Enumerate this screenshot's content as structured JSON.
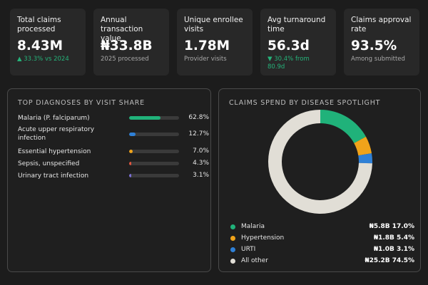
{
  "kpis": [
    {
      "label": "Total claims processed",
      "value": "8.43M",
      "sub": "▲ 33.3% vs 2024",
      "sub_positive": true
    },
    {
      "label": "Annual transaction value",
      "value": "₦33.8B",
      "sub": "2025 processed",
      "sub_positive": false
    },
    {
      "label": "Unique enrollee visits",
      "value": "1.78M",
      "sub": "Provider visits",
      "sub_positive": false
    },
    {
      "label": "Avg turnaround time",
      "value": "56.3d",
      "sub": "▼ 30.4% from 80.9d",
      "sub_positive": true
    },
    {
      "label": "Claims approval rate",
      "value": "93.5%",
      "sub": "Among submitted",
      "sub_positive": false
    }
  ],
  "diagnoses": {
    "title": "TOP DIAGNOSES BY VISIT SHARE",
    "items": [
      {
        "label": "Malaria (P. falciparum)",
        "pct_label": "62.8%",
        "value": 62.8,
        "color": "#20b27a"
      },
      {
        "label": "Acute upper respiratory infection",
        "pct_label": "12.7%",
        "value": 12.7,
        "color": "#2f80d6"
      },
      {
        "label": "Essential hypertension",
        "pct_label": "7.0%",
        "value": 7.0,
        "color": "#f0a31a"
      },
      {
        "label": "Sepsis, unspecified",
        "pct_label": "4.3%",
        "value": 4.3,
        "color": "#e2553e"
      },
      {
        "label": "Urinary tract infection",
        "pct_label": "3.1%",
        "value": 3.1,
        "color": "#7b6fd6"
      }
    ]
  },
  "spend": {
    "title": "CLAIMS SPEND BY DISEASE SPOTLIGHT",
    "chart_data": {
      "type": "pie",
      "categories": [
        "Malaria",
        "Hypertension",
        "URTI",
        "All other"
      ],
      "values": [
        17.0,
        5.4,
        3.1,
        74.5
      ],
      "colors": [
        "#20b27a",
        "#f0a31a",
        "#2f80d6",
        "#e1ded6"
      ]
    },
    "legend": [
      {
        "name": "Malaria",
        "value": "₦5.8B 17.0%",
        "color": "#20b27a"
      },
      {
        "name": "Hypertension",
        "value": "₦1.8B 5.4%",
        "color": "#f0a31a"
      },
      {
        "name": "URTI",
        "value": "₦1.0B 3.1%",
        "color": "#2f80d6"
      },
      {
        "name": "All other",
        "value": "₦25.2B 74.5%",
        "color": "#e1ded6"
      }
    ]
  }
}
